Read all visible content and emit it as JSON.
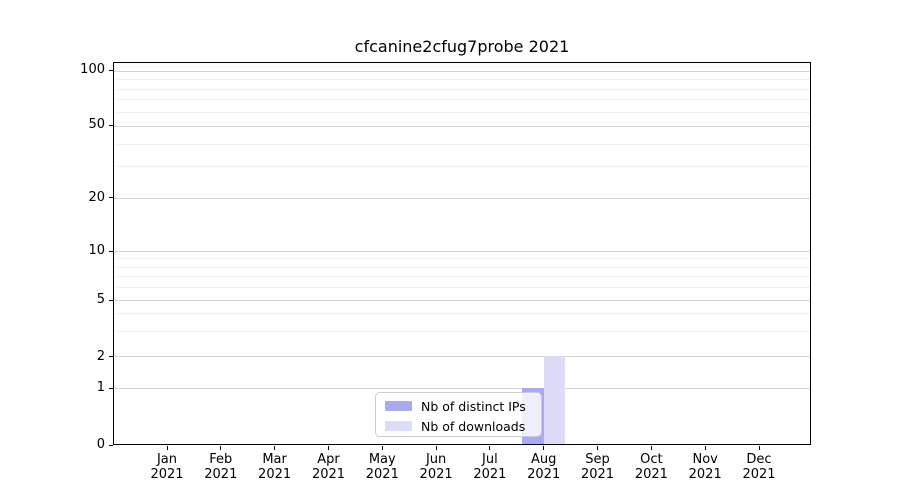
{
  "chart_data": {
    "type": "bar",
    "title": "cfcanine2cfug7probe 2021",
    "categories": [
      "Jan",
      "Feb",
      "Mar",
      "Apr",
      "May",
      "Jun",
      "Jul",
      "Aug",
      "Sep",
      "Oct",
      "Nov",
      "Dec"
    ],
    "year_label": "2021",
    "series": [
      {
        "name": "Nb of distinct IPs",
        "color": "#a9a9ef",
        "values": [
          0,
          0,
          0,
          0,
          0,
          0,
          0,
          1,
          0,
          0,
          0,
          0
        ]
      },
      {
        "name": "Nb of downloads",
        "color": "#dcdcf8",
        "values": [
          0,
          0,
          0,
          0,
          0,
          0,
          0,
          2,
          0,
          0,
          0,
          0
        ]
      }
    ],
    "yscale": "symlog",
    "yticks": [
      0,
      1,
      2,
      5,
      10,
      20,
      50,
      100
    ],
    "ylim": [
      0,
      112
    ],
    "xlabel": "",
    "ylabel": "",
    "grid": "horizontal major + minor",
    "legend_position": "lower-center"
  },
  "colors": {
    "bar_distinct_ips": "#a9a9ef",
    "bar_downloads": "#dcdcf8",
    "grid_major": "#d4d4d4",
    "grid_minor": "#f0f0f0",
    "axis": "#000000",
    "legend_border": "#cccccc"
  }
}
